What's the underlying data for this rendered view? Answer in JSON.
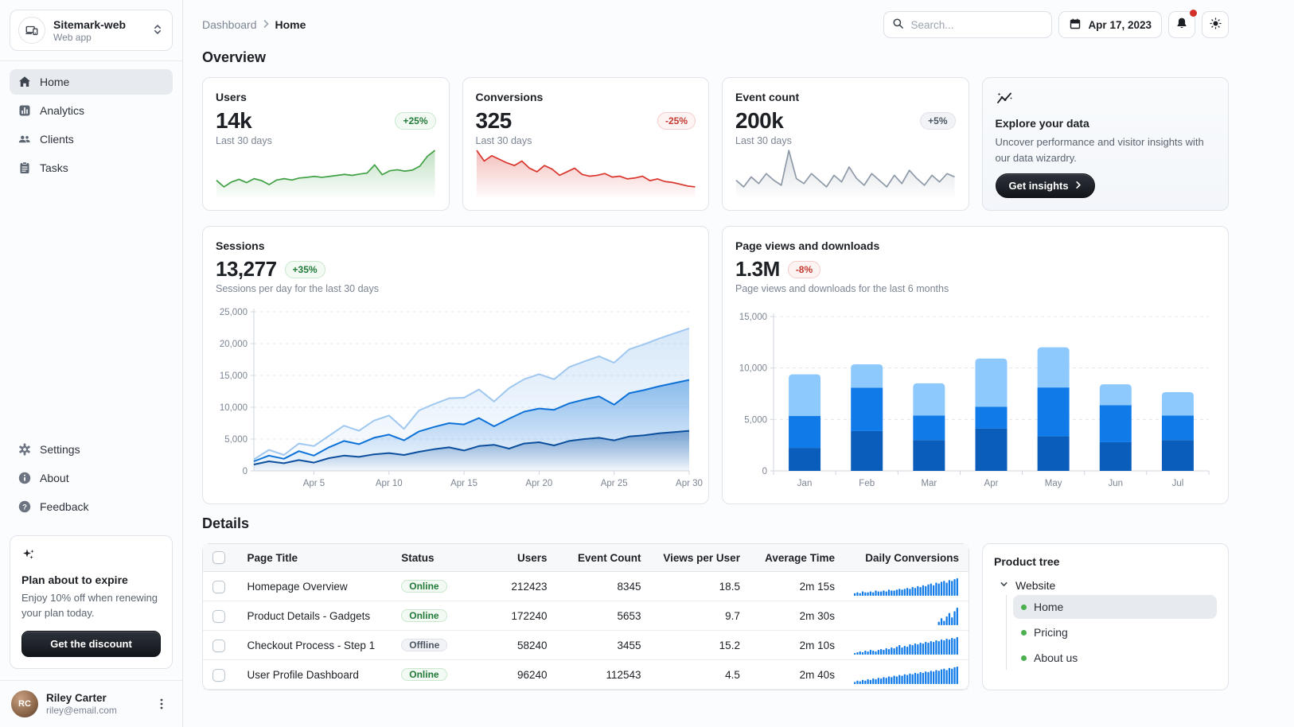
{
  "sidebar": {
    "project": {
      "name": "Sitemark-web",
      "type": "Web app"
    },
    "nav": [
      {
        "label": "Home"
      },
      {
        "label": "Analytics"
      },
      {
        "label": "Clients"
      },
      {
        "label": "Tasks"
      }
    ],
    "nav_secondary": [
      {
        "label": "Settings"
      },
      {
        "label": "About"
      },
      {
        "label": "Feedback"
      }
    ],
    "plan_card": {
      "title": "Plan about to expire",
      "body": "Enjoy 10% off when renewing your plan today.",
      "button": "Get the discount"
    },
    "user": {
      "name": "Riley Carter",
      "email": "riley@email.com",
      "initials": "RC"
    }
  },
  "header": {
    "breadcrumb": [
      "Dashboard",
      "Home"
    ],
    "search_placeholder": "Search...",
    "date": "Apr 17, 2023"
  },
  "overview": {
    "title": "Overview",
    "cards": [
      {
        "title": "Users",
        "value": "14k",
        "delta": "+25%",
        "trend": "up",
        "caption": "Last 30 days"
      },
      {
        "title": "Conversions",
        "value": "325",
        "delta": "-25%",
        "trend": "down",
        "caption": "Last 30 days"
      },
      {
        "title": "Event count",
        "value": "200k",
        "delta": "+5%",
        "trend": "neutral",
        "caption": "Last 30 days"
      }
    ],
    "explore": {
      "title": "Explore your data",
      "body": "Uncover performance and visitor insights with our data wizardry.",
      "button": "Get insights"
    }
  },
  "sessions_card": {
    "title": "Sessions",
    "value": "13,277",
    "delta": "+35%",
    "caption": "Sessions per day for the last 30 days"
  },
  "pageviews_card": {
    "title": "Page views and downloads",
    "value": "1.3M",
    "delta": "-8%",
    "caption": "Page views and downloads for the last 6 months"
  },
  "details": {
    "title": "Details",
    "columns": [
      "Page Title",
      "Status",
      "Users",
      "Event Count",
      "Views per User",
      "Average Time",
      "Daily Conversions"
    ],
    "rows": [
      {
        "title": "Homepage Overview",
        "status": "Online",
        "users": "212423",
        "event_count": "8345",
        "views_per_user": "18.5",
        "avg_time": "2m 15s",
        "daily_conversions": [
          3,
          4,
          3,
          5,
          4,
          4,
          5,
          4,
          6,
          5,
          5,
          6,
          5,
          7,
          6,
          6,
          7,
          8,
          7,
          8,
          9,
          8,
          10,
          9,
          11,
          10,
          12,
          11,
          13,
          14,
          12,
          15,
          14,
          16,
          17,
          15,
          18,
          17,
          19,
          20
        ]
      },
      {
        "title": "Product Details - Gadgets",
        "status": "Online",
        "users": "172240",
        "event_count": "5653",
        "views_per_user": "9.7",
        "avg_time": "2m 30s",
        "daily_conversions": [
          0,
          0,
          0,
          0,
          0,
          0,
          0,
          0,
          0,
          0,
          0,
          0,
          0,
          0,
          0,
          0,
          0,
          0,
          0,
          0,
          0,
          0,
          0,
          0,
          0,
          0,
          0,
          0,
          0,
          0,
          0,
          0,
          4,
          8,
          5,
          10,
          14,
          9,
          16,
          20
        ]
      },
      {
        "title": "Checkout Process - Step 1",
        "status": "Offline",
        "users": "58240",
        "event_count": "3455",
        "views_per_user": "15.2",
        "avg_time": "2m 10s",
        "daily_conversions": [
          2,
          3,
          4,
          3,
          5,
          4,
          6,
          5,
          4,
          6,
          7,
          6,
          8,
          7,
          9,
          8,
          10,
          12,
          9,
          11,
          10,
          13,
          12,
          14,
          13,
          15,
          14,
          16,
          15,
          17,
          16,
          18,
          17,
          19,
          18,
          20,
          19,
          21,
          20,
          22
        ]
      },
      {
        "title": "User Profile Dashboard",
        "status": "Online",
        "users": "96240",
        "event_count": "112543",
        "views_per_user": "4.5",
        "avg_time": "2m 40s",
        "daily_conversions": [
          3,
          5,
          4,
          6,
          5,
          7,
          6,
          8,
          7,
          9,
          8,
          10,
          9,
          11,
          10,
          12,
          11,
          13,
          12,
          14,
          13,
          15,
          14,
          16,
          15,
          17,
          16,
          18,
          17,
          19,
          18,
          20,
          19,
          21,
          22,
          20,
          23,
          22,
          24,
          25
        ]
      }
    ]
  },
  "product_tree": {
    "title": "Product tree",
    "root": "Website",
    "children": [
      {
        "label": "Home",
        "selected": true
      },
      {
        "label": "Pricing",
        "selected": false
      },
      {
        "label": "About us",
        "selected": false
      }
    ]
  },
  "colors": {
    "accent_blue": "#0f7ae8",
    "success_green": "#3fa044",
    "error_red": "#d9352c",
    "neutral_slate": "#8e99a8",
    "badge_red": "#d3302a"
  },
  "chart_data": [
    {
      "id": "users-spark",
      "type": "area",
      "render": "sparkline",
      "title": "Users last 30 days",
      "color": "#3fa044",
      "values": [
        205,
        185,
        200,
        208,
        198,
        210,
        204,
        192,
        206,
        210,
        206,
        212,
        214,
        217,
        214,
        217,
        220,
        223,
        220,
        224,
        227,
        252,
        222,
        234,
        237,
        233,
        236,
        248,
        278,
        296
      ]
    },
    {
      "id": "conversions-spark",
      "type": "area",
      "render": "sparkline",
      "title": "Conversions last 30 days",
      "color": "#d9352c",
      "values": [
        490,
        430,
        460,
        440,
        420,
        405,
        430,
        390,
        370,
        405,
        385,
        350,
        370,
        390,
        355,
        345,
        350,
        360,
        340,
        345,
        330,
        335,
        345,
        320,
        330,
        315,
        310,
        300,
        290,
        285
      ]
    },
    {
      "id": "events-spark",
      "type": "area",
      "render": "sparkline",
      "title": "Event count last 30 days",
      "color": "#8e99a8",
      "values": [
        100,
        96,
        102,
        98,
        104,
        100,
        97,
        118,
        101,
        98,
        104,
        100,
        96,
        103,
        99,
        108,
        101,
        97,
        104,
        100,
        96,
        103,
        98,
        106,
        101,
        97,
        103,
        99,
        104,
        102
      ]
    },
    {
      "id": "sessions",
      "type": "area",
      "render": "stacked-area",
      "title": "Sessions",
      "subtitle": "Sessions per day for the last 30 days",
      "stacked": true,
      "grid": "horizontal-dashed",
      "legend": "none",
      "ylim": [
        0,
        25000
      ],
      "yticks": [
        0,
        5000,
        10000,
        15000,
        20000,
        25000
      ],
      "x_tick_days": [
        5,
        10,
        15,
        20,
        25,
        30
      ],
      "x_tick_labels": [
        "Apr 5",
        "Apr 10",
        "Apr 15",
        "Apr 20",
        "Apr 25",
        "Apr 30"
      ],
      "series": [
        {
          "name": "series-1-bottom",
          "line": "#0b4f9e",
          "values": [
            1000,
            1500,
            1200,
            1700,
            1300,
            2000,
            2400,
            2200,
            2600,
            2800,
            2500,
            3000,
            3400,
            3700,
            3200,
            3900,
            4100,
            3500,
            4300,
            4500,
            4000,
            4700,
            5000,
            5200,
            4800,
            5400,
            5600,
            5900,
            6100,
            6300
          ]
        },
        {
          "name": "series-2-middle",
          "line": "#0d72d8",
          "values": [
            500,
            900,
            700,
            1400,
            1100,
            1700,
            2300,
            2000,
            2600,
            2900,
            2300,
            3200,
            3500,
            3800,
            4100,
            4400,
            2900,
            4700,
            5000,
            5300,
            5600,
            5900,
            6200,
            6500,
            5600,
            6800,
            7100,
            7400,
            7700,
            8000
          ]
        },
        {
          "name": "series-3-top",
          "line": "#9fc7f0",
          "values": [
            300,
            900,
            600,
            1200,
            1500,
            1800,
            2400,
            2100,
            2700,
            3000,
            1800,
            3300,
            3600,
            3900,
            4200,
            4500,
            3900,
            4800,
            5100,
            5400,
            4800,
            5700,
            6000,
            6300,
            6600,
            6900,
            7200,
            7500,
            7800,
            8100
          ]
        }
      ]
    },
    {
      "id": "pageviews",
      "type": "bar",
      "render": "stacked-bar",
      "title": "Page views and downloads",
      "subtitle": "Page views and downloads for the last 6 months",
      "stacked": true,
      "grid": "horizontal-dashed",
      "legend": "none",
      "categories": [
        "Jan",
        "Feb",
        "Mar",
        "Apr",
        "May",
        "Jun",
        "Jul"
      ],
      "ylim": [
        0,
        15000
      ],
      "yticks": [
        0,
        5000,
        10000,
        15000
      ],
      "series": [
        {
          "name": "series-1-bottom",
          "color": "#0a5dba",
          "values": [
            2234,
            3872,
            2998,
            4125,
            3357,
            2789,
            2998
          ]
        },
        {
          "name": "series-2-middle",
          "color": "#0f7ae8",
          "values": [
            3098,
            4215,
            2384,
            2101,
            4752,
            3593,
            2384
          ]
        },
        {
          "name": "series-3-top",
          "color": "#8ec9fd",
          "values": [
            4051,
            2275,
            3129,
            4693,
            3904,
            2038,
            2275
          ]
        }
      ]
    }
  ]
}
